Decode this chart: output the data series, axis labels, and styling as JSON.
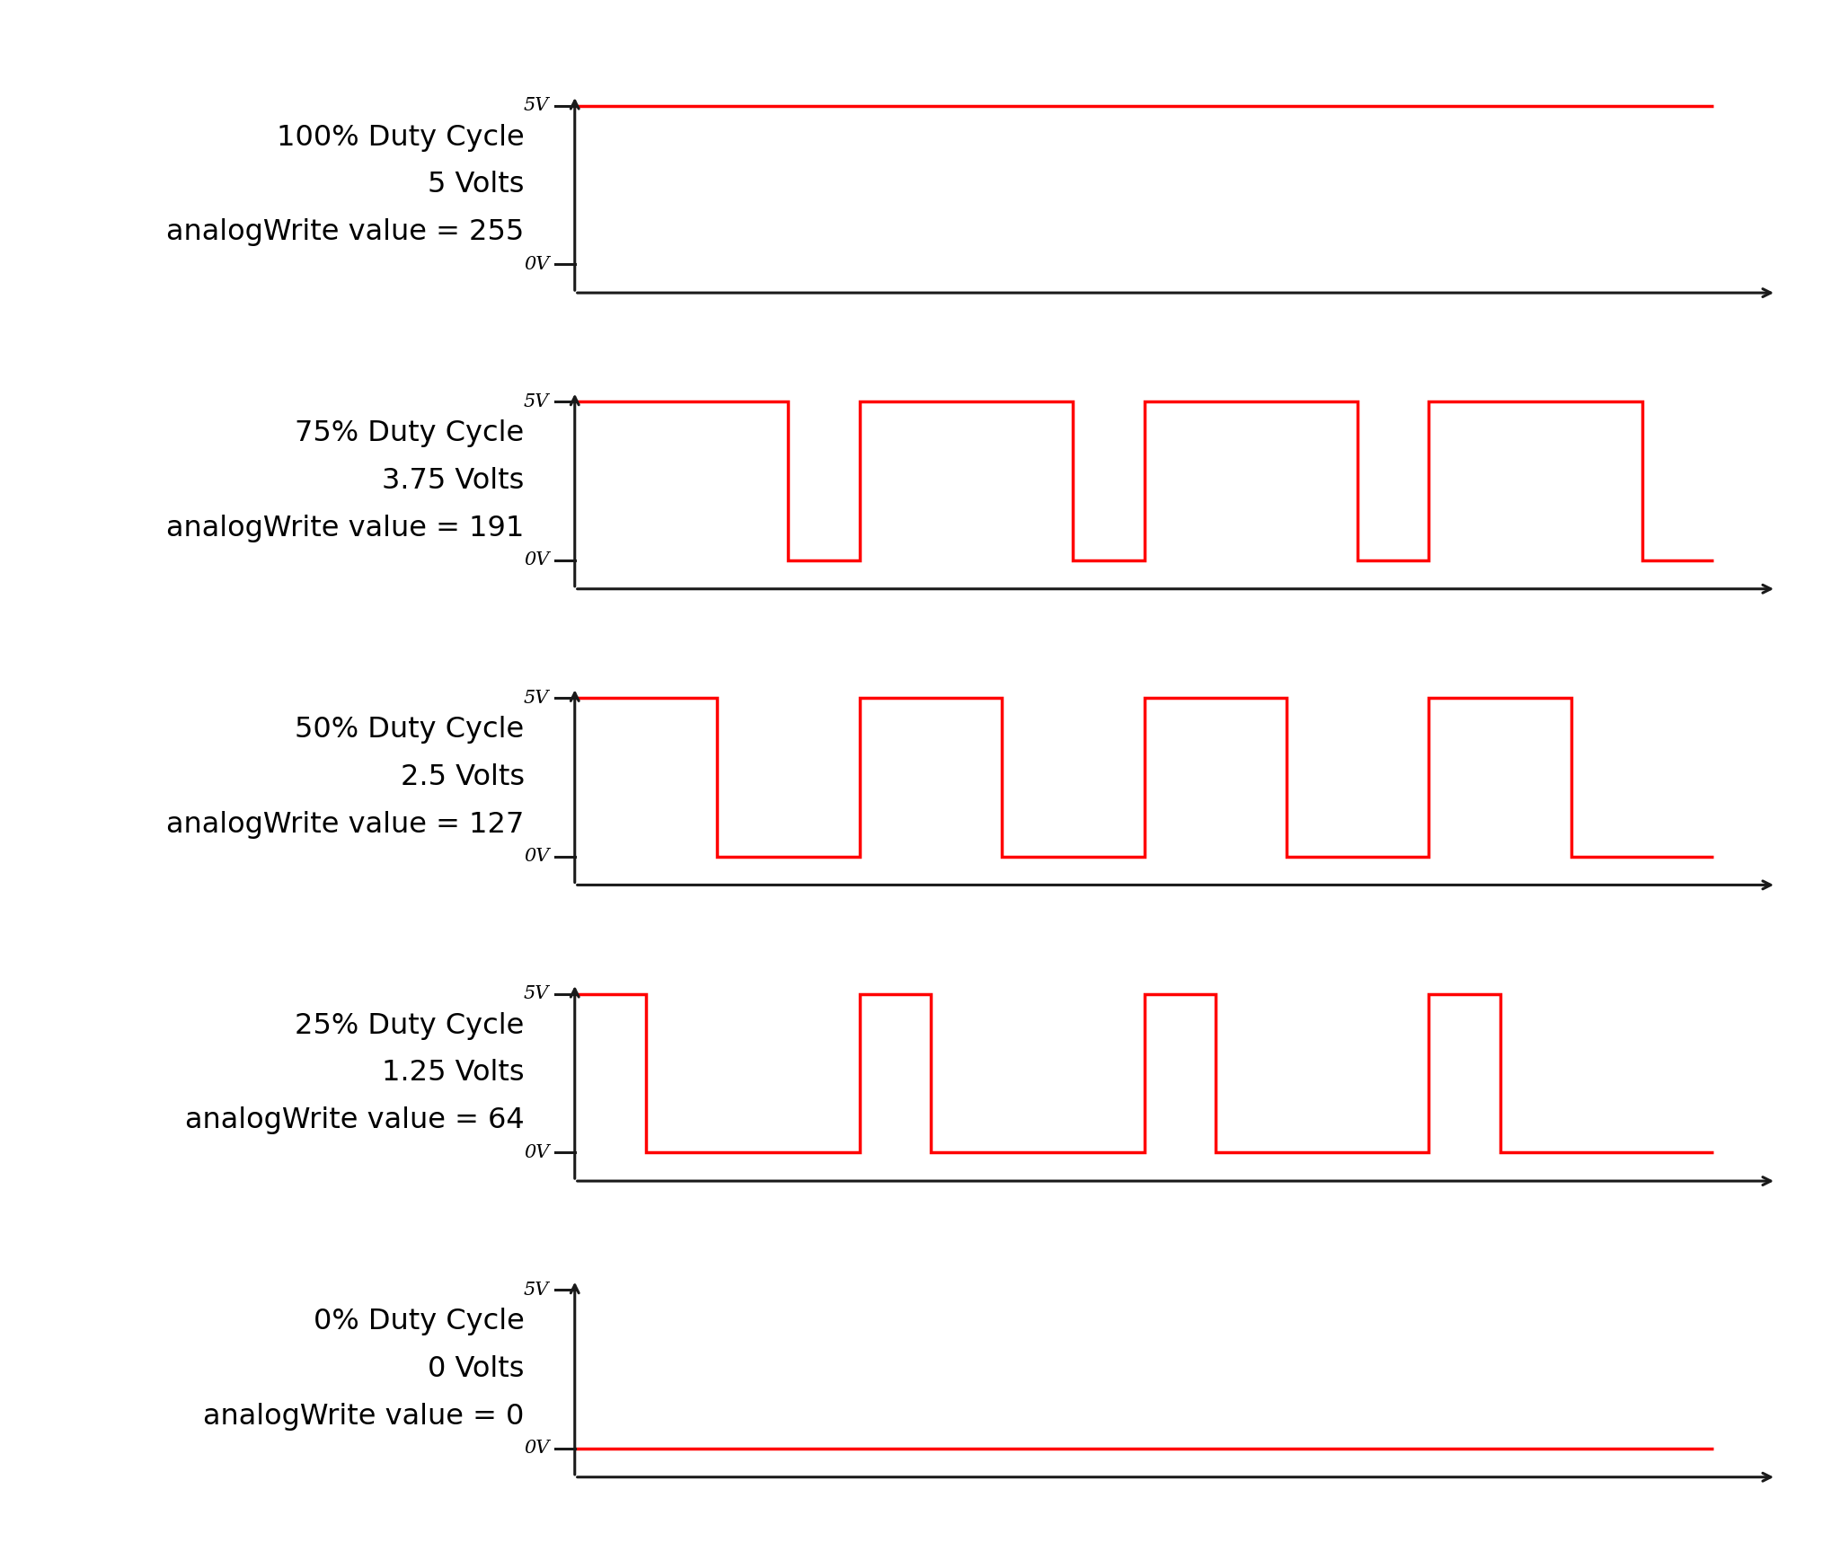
{
  "panels": [
    {
      "duty": 1.0,
      "label_line1": "100% Duty Cycle",
      "label_line2": "5 Volts",
      "label_line3": "analogWrite value = 255"
    },
    {
      "duty": 0.75,
      "label_line1": "75% Duty Cycle",
      "label_line2": "3.75 Volts",
      "label_line3": "analogWrite value = 191"
    },
    {
      "duty": 0.5,
      "label_line1": "50% Duty Cycle",
      "label_line2": "2.5 Volts",
      "label_line3": "analogWrite value = 127"
    },
    {
      "duty": 0.25,
      "label_line1": "25% Duty Cycle",
      "label_line2": "1.25 Volts",
      "label_line3": "analogWrite value = 64"
    },
    {
      "duty": 0.0,
      "label_line1": "0% Duty Cycle",
      "label_line2": "0 Volts",
      "label_line3": "analogWrite value = 0"
    }
  ],
  "signal_color": "#ff0000",
  "axis_color": "#1a1a1a",
  "background_color": "#ffffff",
  "text_color": "#000000",
  "signal_linewidth": 2.5,
  "axis_linewidth": 2.2,
  "num_cycles": 4,
  "label_fontsize": 23,
  "tick_label_fontsize": 15,
  "fig_width": 20.48,
  "fig_height": 17.17
}
